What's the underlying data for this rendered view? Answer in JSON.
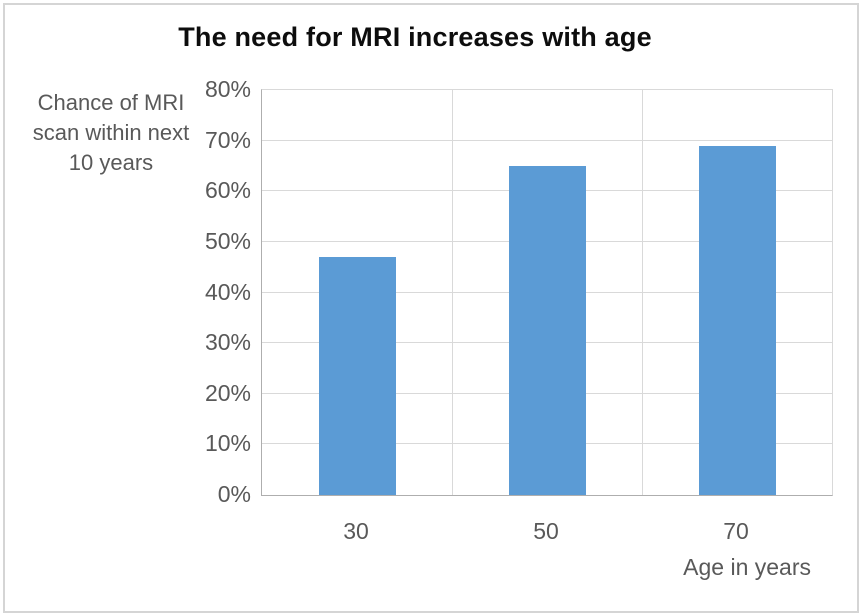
{
  "chart_data": {
    "type": "bar",
    "title": "The need for MRI increases with age",
    "ylabel": "Chance of MRI\nscan within next\n10 years",
    "xlabel": "Age in years",
    "categories": [
      "30",
      "50",
      "70"
    ],
    "values": [
      47,
      65,
      69
    ],
    "ylim": [
      0,
      80
    ],
    "ytick_step": 10,
    "ytick_labels": [
      "0%",
      "10%",
      "20%",
      "30%",
      "40%",
      "50%",
      "60%",
      "70%",
      "80%"
    ],
    "grid": "horizontal-and-vertical",
    "legend": "none",
    "bar_color": "#5B9BD5"
  },
  "style": {
    "accent": "#5B9BD5",
    "gridline_color": "#D9D9D9",
    "axis_line_color": "#AEAEAE",
    "label_color": "#595959",
    "title_color": "#0D0D0D",
    "frame_border_color": "#D5D5D5",
    "background": "#FFFFFF"
  }
}
